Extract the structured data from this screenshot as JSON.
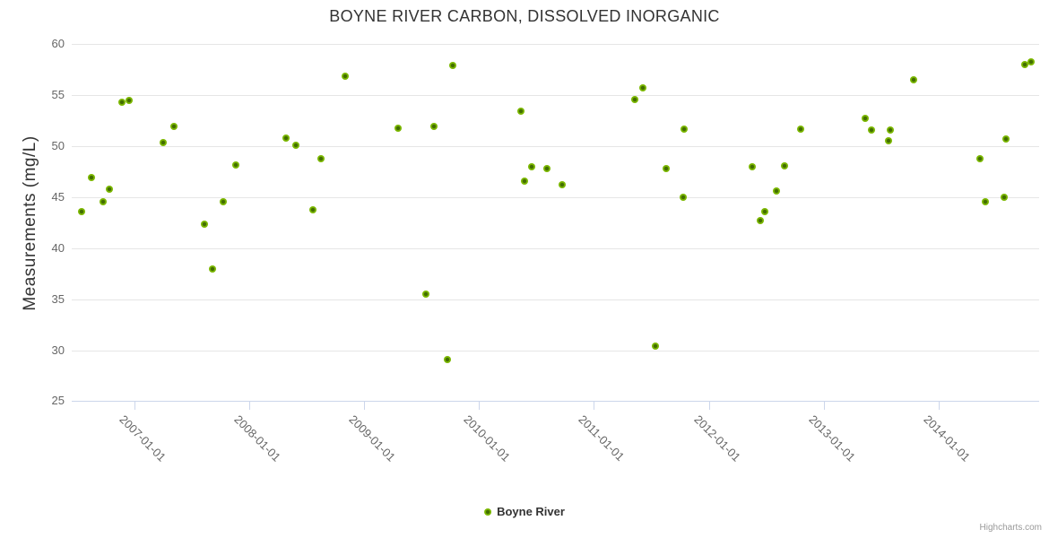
{
  "header": {
    "title": "BOYNE RIVER CARBON, DISSOLVED INORGANIC"
  },
  "credits": "Highcharts.com",
  "colors": {
    "marker_outer": "#7cb800",
    "marker_inner": "#426e00",
    "grid": "#e6e6e6",
    "axis_line": "#ccd6eb",
    "tick_label": "#666666",
    "text": "#333333"
  },
  "chart_data": {
    "type": "scatter",
    "title": "BOYNE RIVER CARBON, DISSOLVED INORGANIC",
    "xlabel": "",
    "ylabel": "Measurements (mg/L)",
    "ylim": [
      25,
      60
    ],
    "y_ticks": [
      25,
      30,
      35,
      40,
      45,
      50,
      55,
      60
    ],
    "x_tick_labels": [
      "2007-01-01",
      "2008-01-01",
      "2009-01-01",
      "2010-01-01",
      "2011-01-01",
      "2012-01-01",
      "2013-01-01",
      "2014-01-01"
    ],
    "grid": "horizontal-only",
    "legend_position": "bottom-center",
    "series": [
      {
        "name": "Boyne River",
        "points": [
          {
            "date": "2006-07-16",
            "value": 43.6
          },
          {
            "date": "2006-08-18",
            "value": 46.9
          },
          {
            "date": "2006-09-22",
            "value": 44.6
          },
          {
            "date": "2006-10-14",
            "value": 45.8
          },
          {
            "date": "2006-11-21",
            "value": 54.3
          },
          {
            "date": "2006-12-14",
            "value": 54.5
          },
          {
            "date": "2007-04-01",
            "value": 50.4
          },
          {
            "date": "2007-05-07",
            "value": 51.9
          },
          {
            "date": "2007-08-12",
            "value": 42.4
          },
          {
            "date": "2007-09-06",
            "value": 38.0
          },
          {
            "date": "2007-10-10",
            "value": 44.6
          },
          {
            "date": "2007-11-18",
            "value": 48.2
          },
          {
            "date": "2008-04-27",
            "value": 50.8
          },
          {
            "date": "2008-05-28",
            "value": 50.1
          },
          {
            "date": "2008-07-21",
            "value": 43.8
          },
          {
            "date": "2008-08-18",
            "value": 48.8
          },
          {
            "date": "2008-11-03",
            "value": 56.9
          },
          {
            "date": "2009-04-18",
            "value": 51.8
          },
          {
            "date": "2009-07-17",
            "value": 35.5
          },
          {
            "date": "2009-08-12",
            "value": 51.9
          },
          {
            "date": "2009-09-23",
            "value": 29.1
          },
          {
            "date": "2009-10-10",
            "value": 57.9
          },
          {
            "date": "2010-05-13",
            "value": 53.4
          },
          {
            "date": "2010-05-25",
            "value": 46.6
          },
          {
            "date": "2010-06-17",
            "value": 48.0
          },
          {
            "date": "2010-08-04",
            "value": 47.8
          },
          {
            "date": "2010-09-22",
            "value": 46.2
          },
          {
            "date": "2011-05-10",
            "value": 54.6
          },
          {
            "date": "2011-06-05",
            "value": 55.7
          },
          {
            "date": "2011-07-15",
            "value": 30.4
          },
          {
            "date": "2011-08-20",
            "value": 47.8
          },
          {
            "date": "2011-10-11",
            "value": 45.0
          },
          {
            "date": "2011-10-16",
            "value": 51.7
          },
          {
            "date": "2012-05-18",
            "value": 48.0
          },
          {
            "date": "2012-06-13",
            "value": 42.7
          },
          {
            "date": "2012-06-29",
            "value": 43.6
          },
          {
            "date": "2012-08-03",
            "value": 45.6
          },
          {
            "date": "2012-08-30",
            "value": 48.1
          },
          {
            "date": "2012-10-21",
            "value": 51.7
          },
          {
            "date": "2013-05-13",
            "value": 52.7
          },
          {
            "date": "2013-06-01",
            "value": 51.6
          },
          {
            "date": "2013-07-26",
            "value": 50.5
          },
          {
            "date": "2013-08-01",
            "value": 51.6
          },
          {
            "date": "2013-10-14",
            "value": 56.5
          },
          {
            "date": "2014-05-14",
            "value": 48.8
          },
          {
            "date": "2014-05-29",
            "value": 44.6
          },
          {
            "date": "2014-07-30",
            "value": 45.0
          },
          {
            "date": "2014-08-04",
            "value": 50.7
          },
          {
            "date": "2014-10-03",
            "value": 58.0
          },
          {
            "date": "2014-10-21",
            "value": 58.3
          }
        ]
      }
    ]
  }
}
